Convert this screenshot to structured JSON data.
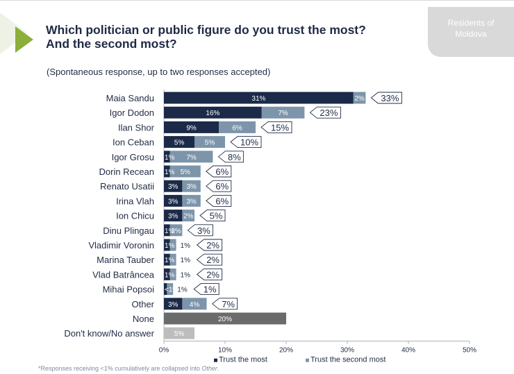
{
  "title_lines": [
    "Which politician or public figure do you trust the most?",
    "And the second most?"
  ],
  "subtitle": "(Spontaneous response, up to two responses accepted)",
  "badge_lines": [
    "Residents of",
    "Moldova"
  ],
  "footnote": {
    "prefix": "*Responses receiving <1% cumulatively are collapsed into ",
    "emph": "Other",
    "suffix": "."
  },
  "colors": {
    "trust_most": "#1b2a48",
    "trust_second": "#7d95aa",
    "none": "#6b6b6b",
    "dont_know": "#bdbdbd",
    "accent": "#8cae3c",
    "text": "#1f2a44"
  },
  "chart_data": {
    "type": "bar",
    "orientation": "horizontal",
    "stacked": true,
    "xlim": [
      0,
      50
    ],
    "xticks": [
      0,
      10,
      20,
      30,
      40,
      50
    ],
    "tick_suffix": "%",
    "grid": false,
    "legend_position": "bottom",
    "categories": [
      "Maia Sandu",
      "Igor Dodon",
      "Ilan Shor",
      "Ion Ceban",
      "Igor Grosu",
      "Dorin Recean",
      "Renato Usatii",
      "Irina Vlah",
      "Ion Chicu",
      "Dinu Plingau",
      "Vladimir Voronin",
      "Marina Tauber",
      "Vlad Batrâncea",
      "Mihai Popsoi",
      "Other",
      "None",
      "Don't know/No answer"
    ],
    "series": [
      {
        "name": "Trust the most",
        "values": [
          31,
          16,
          9,
          5,
          1,
          1,
          3,
          3,
          3,
          1,
          1,
          1,
          1,
          0.5,
          3,
          null,
          null
        ],
        "labels": [
          "31%",
          "16%",
          "9%",
          "5%",
          "1%",
          "1%",
          "3%",
          "3%",
          "3%",
          "1%",
          "1%",
          "1%",
          "1%",
          "<1%",
          "3%",
          "",
          ""
        ]
      },
      {
        "name": "Trust the second most",
        "values": [
          2,
          7,
          6,
          5,
          7,
          5,
          3,
          3,
          2,
          2,
          1,
          1,
          1,
          1,
          4,
          null,
          null
        ],
        "labels": [
          "2%",
          "7%",
          "6%",
          "5%",
          "7%",
          "5%",
          "3%",
          "3%",
          "2%",
          "2%",
          "1%",
          "1%",
          "1%",
          "1%",
          "4%",
          "",
          ""
        ]
      }
    ],
    "other_bars": [
      {
        "category": "None",
        "value": 20,
        "label": "20%"
      },
      {
        "category": "Don't know/No answer",
        "value": 5,
        "label": "5%"
      }
    ],
    "totals": [
      33,
      23,
      15,
      10,
      8,
      6,
      6,
      6,
      5,
      3,
      2,
      2,
      2,
      1,
      7,
      null,
      null
    ],
    "total_labels": [
      "33%",
      "23%",
      "15%",
      "10%",
      "8%",
      "6%",
      "6%",
      "6%",
      "5%",
      "3%",
      "2%",
      "2%",
      "2%",
      "1%",
      "7%",
      "",
      ""
    ]
  }
}
